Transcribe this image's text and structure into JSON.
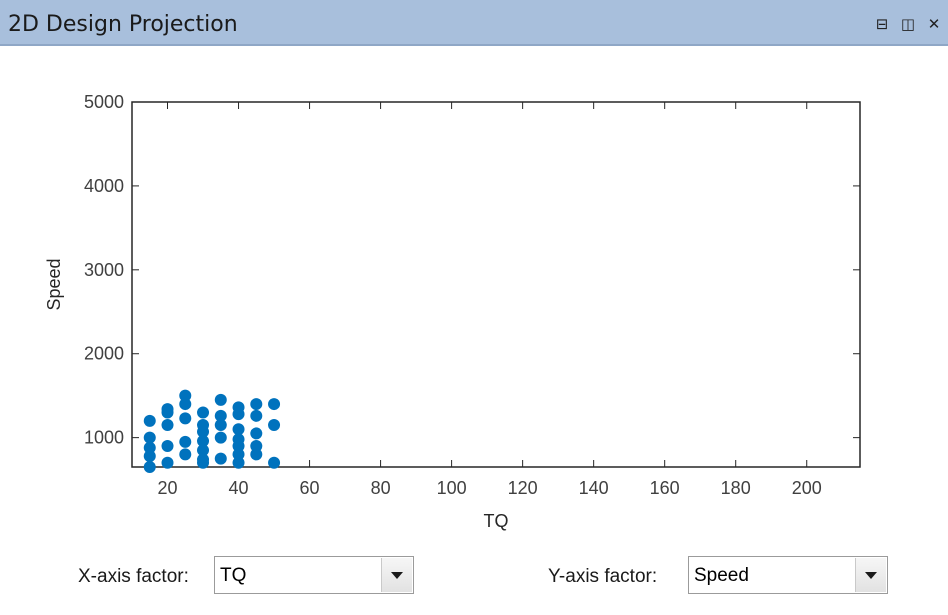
{
  "window": {
    "title": "2D Design Projection"
  },
  "titlebar_buttons": [
    {
      "name": "undock-button",
      "glyph": "⊟"
    },
    {
      "name": "maximize-button",
      "glyph": "◫"
    },
    {
      "name": "close-button",
      "glyph": "✕"
    }
  ],
  "chart_data": {
    "type": "scatter",
    "xlabel": "TQ",
    "ylabel": "Speed",
    "xlim": [
      10,
      215
    ],
    "ylim": [
      650,
      5000
    ],
    "xticks": [
      20,
      40,
      60,
      80,
      100,
      120,
      140,
      160,
      180,
      200
    ],
    "yticks": [
      1000,
      2000,
      3000,
      4000,
      5000
    ],
    "marker_color": "#0072bd",
    "grid": false,
    "points": [
      [
        15,
        1200
      ],
      [
        15,
        1000
      ],
      [
        15,
        880
      ],
      [
        15,
        780
      ],
      [
        15,
        650
      ],
      [
        20,
        1340
      ],
      [
        20,
        1300
      ],
      [
        20,
        1150
      ],
      [
        20,
        900
      ],
      [
        20,
        700
      ],
      [
        25,
        1500
      ],
      [
        25,
        1400
      ],
      [
        25,
        1230
      ],
      [
        25,
        950
      ],
      [
        25,
        800
      ],
      [
        30,
        1300
      ],
      [
        30,
        1150
      ],
      [
        30,
        1070
      ],
      [
        30,
        960
      ],
      [
        30,
        850
      ],
      [
        30,
        740
      ],
      [
        30,
        700
      ],
      [
        35,
        1450
      ],
      [
        35,
        1260
      ],
      [
        35,
        1150
      ],
      [
        35,
        1000
      ],
      [
        35,
        750
      ],
      [
        40,
        1360
      ],
      [
        40,
        1280
      ],
      [
        40,
        1100
      ],
      [
        40,
        980
      ],
      [
        40,
        900
      ],
      [
        40,
        800
      ],
      [
        40,
        700
      ],
      [
        45,
        1400
      ],
      [
        45,
        1260
      ],
      [
        45,
        1050
      ],
      [
        45,
        900
      ],
      [
        45,
        800
      ],
      [
        50,
        1400
      ],
      [
        50,
        1150
      ],
      [
        50,
        700
      ]
    ]
  },
  "controls": {
    "x_factor_label": "X-axis factor:",
    "x_factor_value": "TQ",
    "y_factor_label": "Y-axis factor:",
    "y_factor_value": "Speed"
  }
}
